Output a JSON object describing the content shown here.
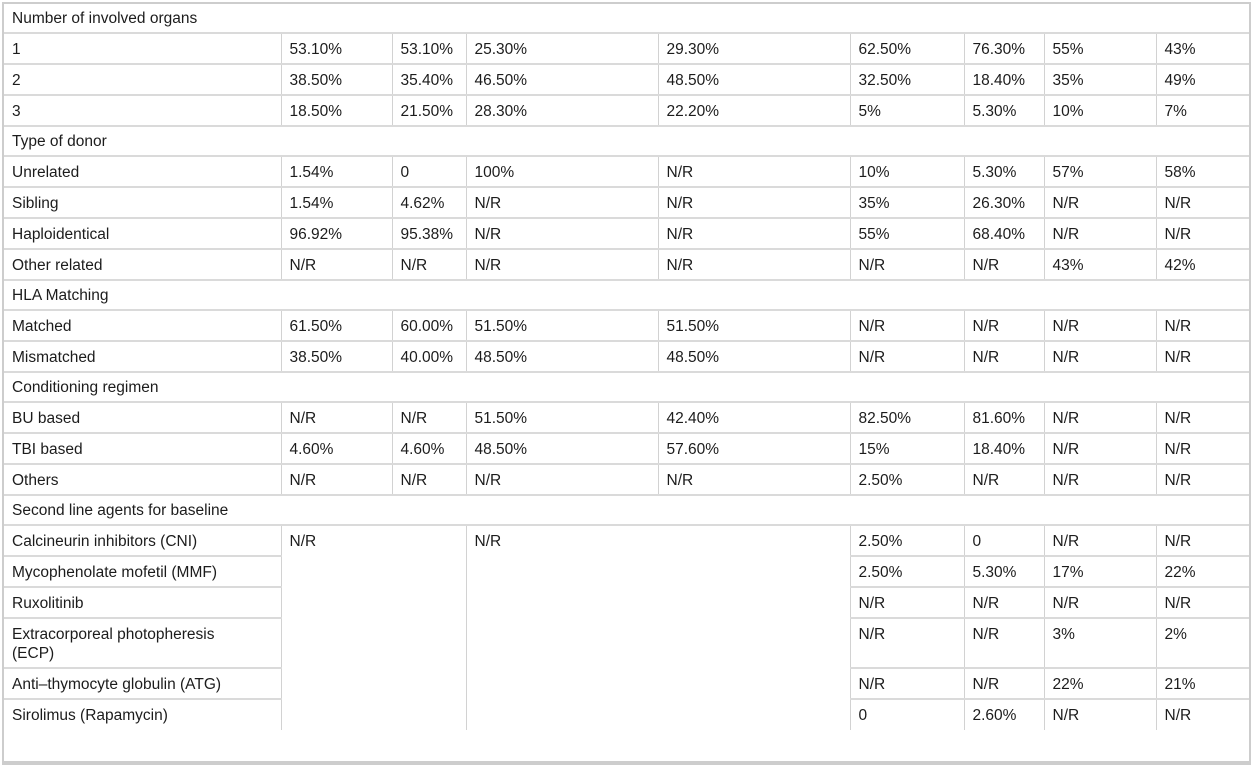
{
  "table": {
    "description": "Patient and transplant characteristics table",
    "column_count": 9,
    "na_text": "N/R",
    "sections": [
      {
        "header": "Number of involved organs",
        "rows": [
          {
            "label": "1",
            "values": [
              "53.10%",
              "53.10%",
              "25.30%",
              "29.30%",
              "62.50%",
              "76.30%",
              "55%",
              "43%"
            ]
          },
          {
            "label": "2",
            "values": [
              "38.50%",
              "35.40%",
              "46.50%",
              "48.50%",
              "32.50%",
              "18.40%",
              "35%",
              "49%"
            ]
          },
          {
            "label": "3",
            "values": [
              "18.50%",
              "21.50%",
              "28.30%",
              "22.20%",
              "5%",
              "5.30%",
              "10%",
              "7%"
            ]
          }
        ]
      },
      {
        "header": "Type of donor",
        "rows": [
          {
            "label": "Unrelated",
            "values": [
              "1.54%",
              "0",
              "100%",
              "N/R",
              "10%",
              "5.30%",
              "57%",
              "58%"
            ]
          },
          {
            "label": "Sibling",
            "values": [
              "1.54%",
              "4.62%",
              "N/R",
              "N/R",
              "35%",
              "26.30%",
              "N/R",
              "N/R"
            ]
          },
          {
            "label": "Haploidentical",
            "values": [
              "96.92%",
              "95.38%",
              "N/R",
              "N/R",
              "55%",
              "68.40%",
              "N/R",
              "N/R"
            ]
          },
          {
            "label": "Other related",
            "values": [
              "N/R",
              "N/R",
              "N/R",
              "N/R",
              "N/R",
              "N/R",
              "43%",
              "42%"
            ]
          }
        ]
      },
      {
        "header": "HLA Matching",
        "rows": [
          {
            "label": "Matched",
            "values": [
              "61.50%",
              "60.00%",
              "51.50%",
              "51.50%",
              "N/R",
              "N/R",
              "N/R",
              "N/R"
            ]
          },
          {
            "label": "Mismatched",
            "values": [
              "38.50%",
              "40.00%",
              "48.50%",
              "48.50%",
              "N/R",
              "N/R",
              "N/R",
              "N/R"
            ]
          }
        ]
      },
      {
        "header": "Conditioning regimen",
        "rows": [
          {
            "label": "BU based",
            "values": [
              "N/R",
              "N/R",
              "51.50%",
              "42.40%",
              "82.50%",
              "81.60%",
              "N/R",
              "N/R"
            ]
          },
          {
            "label": "TBI based",
            "values": [
              "4.60%",
              "4.60%",
              "48.50%",
              "57.60%",
              "15%",
              "18.40%",
              "N/R",
              "N/R"
            ]
          },
          {
            "label": "Others",
            "values": [
              "N/R",
              "N/R",
              "N/R",
              "N/R",
              "2.50%",
              "N/R",
              "N/R",
              "N/R"
            ]
          }
        ]
      },
      {
        "header": "Second line agents for baseline",
        "merged_cells": [
          {
            "columns": "1-2",
            "value": "N/R"
          },
          {
            "columns": "3-4",
            "value": "N/R"
          }
        ],
        "rows": [
          {
            "label": "Calcineurin inhibitors (CNI)",
            "values": [
              "2.50%",
              "0",
              "N/R",
              "N/R"
            ]
          },
          {
            "label": "Mycophenolate mofetil (MMF)",
            "values": [
              "2.50%",
              "5.30%",
              "17%",
              "22%"
            ]
          },
          {
            "label": "Ruxolitinib",
            "values": [
              "N/R",
              "N/R",
              "N/R",
              "N/R"
            ]
          },
          {
            "label": "Extracorporeal photopheresis (ECP)",
            "values": [
              "N/R",
              "N/R",
              "3%",
              "2%"
            ]
          },
          {
            "label": "Anti–thymocyte globulin (ATG)",
            "values": [
              "N/R",
              "N/R",
              "22%",
              "21%"
            ]
          },
          {
            "label": "Sirolimus (Rapamycin)",
            "values": [
              "0",
              "2.60%",
              "N/R",
              "N/R"
            ]
          }
        ]
      }
    ]
  }
}
